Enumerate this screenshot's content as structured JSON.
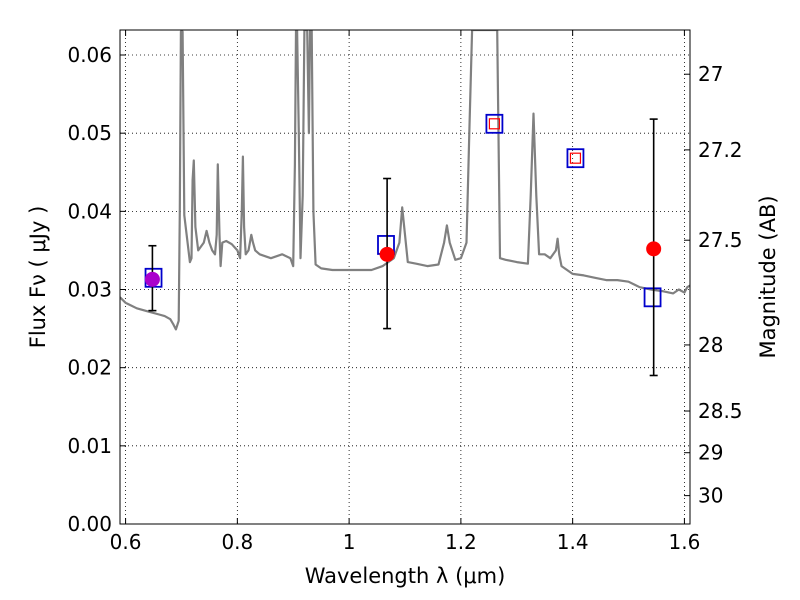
{
  "chart_data": {
    "type": "line",
    "title": "",
    "xlabel": "Wavelength  λ (μm)",
    "ylabel": "Flux  Fν  ( μJy )",
    "y2label": "Magnitude (AB)",
    "xlim": [
      0.59,
      1.61
    ],
    "ylim": [
      0.0,
      0.0632
    ],
    "grid": true,
    "x_ticks": [
      0.6,
      0.8,
      1.0,
      1.2,
      1.4,
      1.6
    ],
    "x_tick_labels": [
      "0.6",
      "0.8",
      "1",
      "1.2",
      "1.4",
      "1.6"
    ],
    "y_ticks": [
      0.0,
      0.01,
      0.02,
      0.03,
      0.04,
      0.05,
      0.06
    ],
    "y_tick_labels": [
      "0.00",
      "0.01",
      "0.02",
      "0.03",
      "0.04",
      "0.05",
      "0.06"
    ],
    "mag_ticks": [
      27,
      27.2,
      27.5,
      28,
      28.5,
      29,
      30
    ],
    "mag_tick_labels": [
      "27",
      "27.2",
      "27.5",
      "28",
      "28.5",
      "29",
      "30"
    ],
    "colors": {
      "spectrum": "#808080",
      "observed": "#ff0000",
      "model_box": "#0000cc",
      "model_box_inner": "#ff0000",
      "overlap": "#aa00cc",
      "errorbar": "#000000"
    },
    "series": [
      {
        "type": "line",
        "x": [
          0.59,
          0.6,
          0.62,
          0.64,
          0.66,
          0.67,
          0.68,
          0.685,
          0.69,
          0.695,
          0.697,
          0.699,
          0.702,
          0.705,
          0.715,
          0.718,
          0.72,
          0.722,
          0.725,
          0.73,
          0.74,
          0.745,
          0.75,
          0.755,
          0.76,
          0.763,
          0.765,
          0.768,
          0.77,
          0.773,
          0.78,
          0.79,
          0.8,
          0.805,
          0.808,
          0.81,
          0.812,
          0.815,
          0.82,
          0.825,
          0.828,
          0.832,
          0.84,
          0.86,
          0.88,
          0.895,
          0.9,
          0.903,
          0.905,
          0.907,
          0.91,
          0.913,
          0.917,
          0.92,
          0.923,
          0.925,
          0.928,
          0.93,
          0.933,
          0.936,
          0.94,
          0.95,
          0.97,
          1.0,
          1.02,
          1.04,
          1.06,
          1.08,
          1.09,
          1.095,
          1.1,
          1.105,
          1.12,
          1.14,
          1.16,
          1.17,
          1.175,
          1.18,
          1.19,
          1.2,
          1.21,
          1.215,
          1.22,
          1.225,
          1.23,
          1.24,
          1.25,
          1.255,
          1.26,
          1.265,
          1.27,
          1.28,
          1.3,
          1.32,
          1.325,
          1.33,
          1.335,
          1.34,
          1.35,
          1.36,
          1.37,
          1.373,
          1.376,
          1.38,
          1.4,
          1.42,
          1.44,
          1.46,
          1.48,
          1.5,
          1.52,
          1.54,
          1.56,
          1.58,
          1.59,
          1.6,
          1.605,
          1.61
        ],
        "y": [
          0.029,
          0.0283,
          0.0276,
          0.0272,
          0.0268,
          0.0266,
          0.0262,
          0.0256,
          0.0249,
          0.026,
          0.04,
          0.063,
          0.063,
          0.0395,
          0.0335,
          0.034,
          0.044,
          0.0465,
          0.038,
          0.035,
          0.036,
          0.0375,
          0.036,
          0.035,
          0.0345,
          0.037,
          0.046,
          0.037,
          0.033,
          0.036,
          0.0362,
          0.0358,
          0.035,
          0.034,
          0.04,
          0.047,
          0.038,
          0.0345,
          0.035,
          0.037,
          0.036,
          0.035,
          0.0345,
          0.034,
          0.0345,
          0.034,
          0.033,
          0.046,
          0.0632,
          0.0632,
          0.05,
          0.034,
          0.042,
          0.0632,
          0.0632,
          0.0632,
          0.05,
          0.0632,
          0.0632,
          0.04,
          0.0332,
          0.0327,
          0.0325,
          0.0325,
          0.0325,
          0.0325,
          0.033,
          0.034,
          0.036,
          0.0405,
          0.037,
          0.0335,
          0.0333,
          0.033,
          0.0332,
          0.036,
          0.0382,
          0.036,
          0.0338,
          0.034,
          0.036,
          0.05,
          0.0632,
          0.0632,
          0.0632,
          0.0632,
          0.0632,
          0.0632,
          0.0632,
          0.0632,
          0.034,
          0.0338,
          0.0335,
          0.0333,
          0.042,
          0.0525,
          0.042,
          0.0345,
          0.0345,
          0.034,
          0.035,
          0.0365,
          0.0345,
          0.033,
          0.032,
          0.0318,
          0.0315,
          0.0312,
          0.0312,
          0.031,
          0.0303,
          0.03,
          0.0298,
          0.0295,
          0.03,
          0.0296,
          0.0303,
          0.0305
        ]
      },
      {
        "type": "errorbar",
        "x": [
          0.648,
          1.068,
          1.545
        ],
        "y": [
          0.0313,
          0.0345,
          0.0352
        ],
        "yerr_low": [
          0.004,
          0.0095,
          0.0162
        ],
        "yerr_high": [
          0.0043,
          0.0097,
          0.0166
        ]
      },
      {
        "type": "scatter",
        "x": [
          0.648,
          1.068,
          1.545
        ],
        "y": [
          0.0313,
          0.0345,
          0.0352
        ]
      },
      {
        "type": "scatter",
        "x": [
          0.65,
          1.066,
          1.26,
          1.405,
          1.543
        ],
        "y": [
          0.0315,
          0.0357,
          0.0512,
          0.0468,
          0.029
        ]
      }
    ]
  }
}
